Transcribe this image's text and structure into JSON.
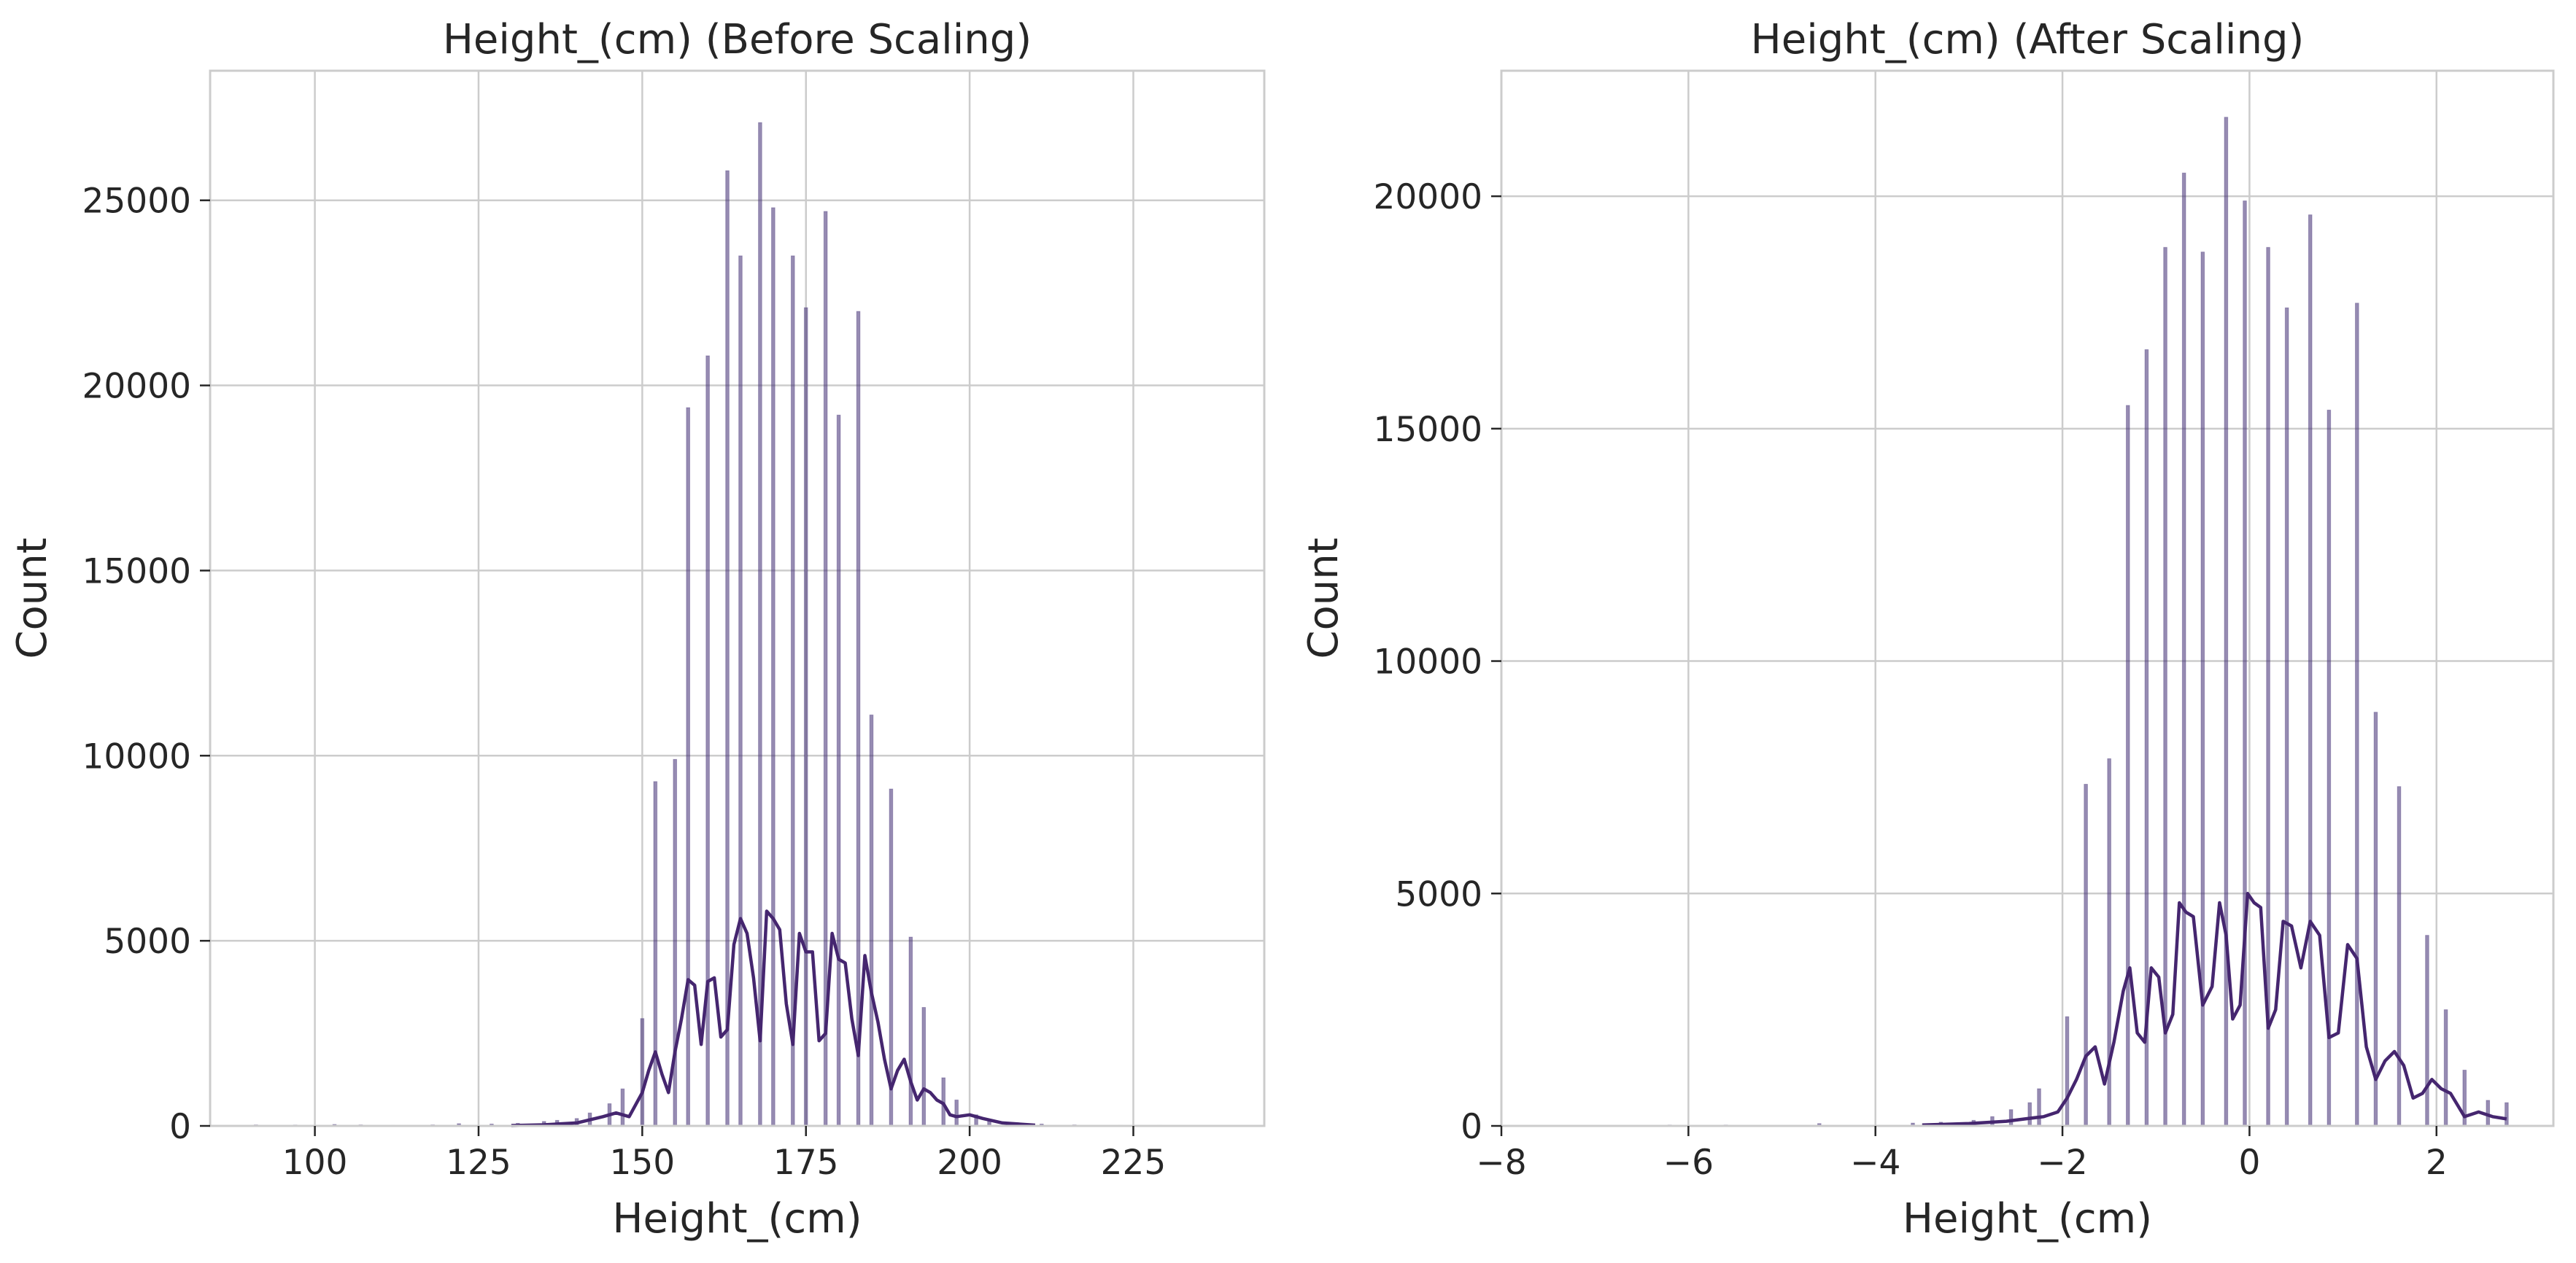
{
  "chart_data": [
    {
      "type": "bar",
      "title": "Height_(cm) (Before Scaling)",
      "xlabel": "Height_(cm)",
      "ylabel": "Count",
      "xlim": [
        84,
        245
      ],
      "ylim": [
        0,
        28500
      ],
      "xticks": [
        100,
        125,
        150,
        175,
        200,
        225
      ],
      "yticks": [
        0,
        5000,
        10000,
        15000,
        20000,
        25000
      ],
      "grid": true,
      "bar_color": "#3f2b73",
      "kde_color": "#45266f",
      "bars": {
        "x": [
          91,
          97,
          103,
          107,
          112,
          118,
          122,
          127,
          131,
          135,
          137,
          140,
          142,
          145,
          147,
          150,
          152,
          155,
          157,
          160,
          163,
          165,
          168,
          170,
          173,
          175,
          178,
          180,
          183,
          185,
          188,
          191,
          193,
          196,
          198,
          201,
          203,
          206,
          211,
          216,
          223,
          229,
          234,
          239
        ],
        "values": [
          30,
          25,
          40,
          30,
          20,
          30,
          60,
          50,
          70,
          120,
          150,
          200,
          350,
          600,
          1000,
          2900,
          9300,
          9900,
          19400,
          20800,
          25800,
          23500,
          27100,
          24800,
          23500,
          22100,
          24700,
          19200,
          22000,
          11100,
          9100,
          5100,
          3200,
          1300,
          700,
          300,
          150,
          80,
          50,
          30,
          20,
          20,
          15,
          15
        ]
      },
      "kde": {
        "x": [
          130,
          135,
          140,
          144,
          146,
          148,
          150,
          151,
          152,
          153,
          154,
          155,
          156,
          157,
          158,
          159,
          160,
          161,
          162,
          163,
          164,
          165,
          166,
          167,
          168,
          169,
          170,
          171,
          172,
          173,
          174,
          175,
          176,
          177,
          178,
          179,
          180,
          181,
          182,
          183,
          184,
          185,
          186,
          187,
          188,
          189,
          190,
          191,
          192,
          193,
          194,
          195,
          196,
          197,
          198,
          200,
          202,
          205,
          210
        ],
        "values": [
          10,
          30,
          80,
          250,
          350,
          250,
          900,
          1500,
          2000,
          1400,
          900,
          2000,
          2900,
          3950,
          3800,
          2200,
          3900,
          4000,
          2400,
          2600,
          4900,
          5600,
          5200,
          4000,
          2300,
          5800,
          5600,
          5300,
          3300,
          2200,
          5200,
          4700,
          4700,
          2300,
          2500,
          5200,
          4500,
          4400,
          2900,
          1900,
          4600,
          3600,
          2800,
          1800,
          1000,
          1500,
          1800,
          1200,
          700,
          1000,
          900,
          700,
          600,
          300,
          250,
          300,
          200,
          80,
          20
        ]
      }
    },
    {
      "type": "bar",
      "title": "Height_(cm) (After Scaling)",
      "xlabel": "Height_(cm)",
      "ylabel": "Count",
      "xlim": [
        -8,
        3.25
      ],
      "ylim": [
        0,
        22700
      ],
      "xticks": [
        -8,
        -6,
        -4,
        -2,
        0,
        2
      ],
      "yticks": [
        0,
        5000,
        10000,
        15000,
        20000
      ],
      "grid": true,
      "bar_color": "#3f2b73",
      "kde_color": "#45266f",
      "bars": {
        "x": [
          -7.45,
          -6.2,
          -5.6,
          -4.6,
          -3.6,
          -3.3,
          -2.95,
          -2.75,
          -2.55,
          -2.35,
          -2.25,
          -1.95,
          -1.75,
          -1.5,
          -1.3,
          -1.1,
          -0.9,
          -0.7,
          -0.5,
          -0.25,
          -0.05,
          0.2,
          0.4,
          0.65,
          0.85,
          1.15,
          1.35,
          1.6,
          1.9,
          2.1,
          2.3,
          2.55,
          2.75
        ],
        "values": [
          15,
          20,
          20,
          50,
          60,
          80,
          120,
          200,
          350,
          500,
          800,
          2350,
          7350,
          7900,
          15500,
          16700,
          18900,
          20500,
          18800,
          21700,
          19900,
          18900,
          17600,
          19600,
          15400,
          17700,
          8900,
          7300,
          4100,
          2500,
          1200,
          550,
          500
        ]
      },
      "kde": {
        "x": [
          -3.5,
          -3.0,
          -2.6,
          -2.4,
          -2.2,
          -2.05,
          -1.95,
          -1.85,
          -1.75,
          -1.65,
          -1.55,
          -1.45,
          -1.35,
          -1.28,
          -1.2,
          -1.12,
          -1.05,
          -0.97,
          -0.9,
          -0.82,
          -0.75,
          -0.68,
          -0.6,
          -0.5,
          -0.4,
          -0.32,
          -0.25,
          -0.18,
          -0.1,
          -0.02,
          0.05,
          0.12,
          0.2,
          0.28,
          0.36,
          0.45,
          0.55,
          0.65,
          0.75,
          0.85,
          0.95,
          1.05,
          1.15,
          1.25,
          1.35,
          1.45,
          1.55,
          1.65,
          1.75,
          1.85,
          1.95,
          2.05,
          2.15,
          2.3,
          2.45,
          2.6,
          2.75
        ],
        "values": [
          20,
          50,
          100,
          150,
          200,
          300,
          600,
          1000,
          1500,
          1700,
          900,
          1800,
          2900,
          3400,
          2000,
          1800,
          3400,
          3200,
          2000,
          2400,
          4800,
          4600,
          4500,
          2600,
          3000,
          4800,
          4100,
          2300,
          2600,
          5000,
          4800,
          4700,
          2100,
          2500,
          4400,
          4300,
          3400,
          4400,
          4100,
          1900,
          2000,
          3900,
          3600,
          1700,
          1000,
          1400,
          1600,
          1300,
          600,
          700,
          1000,
          800,
          700,
          200,
          300,
          200,
          150
        ]
      }
    }
  ]
}
